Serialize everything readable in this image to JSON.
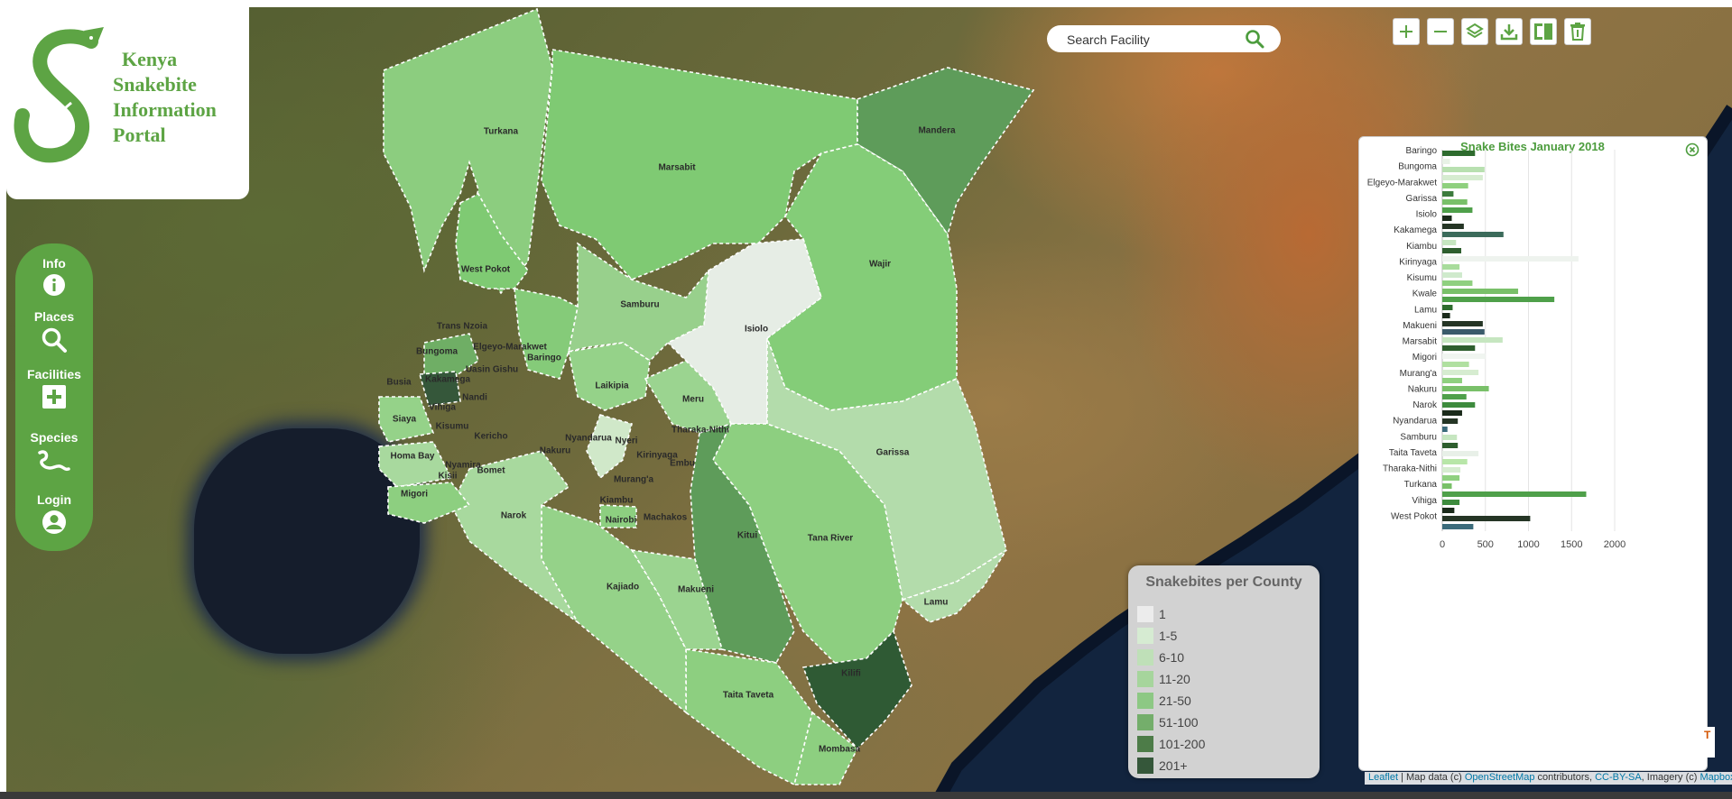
{
  "logo": {
    "line1": "Kenya",
    "line2": "Snakebite",
    "line3": "Information",
    "line4": "Portal"
  },
  "nav": {
    "info": {
      "label": "Info",
      "icon": "info-icon"
    },
    "places": {
      "label": "Places",
      "icon": "search-icon"
    },
    "facilities": {
      "label": "Facilities",
      "icon": "plus-box-icon"
    },
    "species": {
      "label": "Species",
      "icon": "snake-icon"
    },
    "login": {
      "label": "Login",
      "icon": "user-icon"
    }
  },
  "search": {
    "placeholder": "Search Facility",
    "value": ""
  },
  "toolbar": [
    "zoom-in-icon",
    "zoom-out-icon",
    "layers-icon",
    "download-icon",
    "compare-icon",
    "delete-icon"
  ],
  "counties": [
    "Turkana",
    "Marsabit",
    "Mandera",
    "Wajir",
    "West Pokot",
    "Samburu",
    "Isiolo",
    "Trans Nzoia",
    "Elgeyo-Marakwet",
    "Baringo",
    "Bungoma",
    "Uasin Gishu",
    "Busia",
    "Kakamega",
    "Nandi",
    "Vihiga",
    "Siaya",
    "Kisumu",
    "Kericho",
    "Laikipia",
    "Meru",
    "Tharaka-Nithi",
    "Nyandarua",
    "Nyeri",
    "Homa Bay",
    "Nyamira",
    "Kisii",
    "Bomet",
    "Nakuru",
    "Kirinyaga",
    "Embu",
    "Migori",
    "Murang'a",
    "Garissa",
    "Kiambu",
    "Narok",
    "Nairobi",
    "Machakos",
    "Kitui",
    "Tana River",
    "Lamu",
    "Kajiado",
    "Makueni",
    "Taita Taveta",
    "Kilifi",
    "Mombasa"
  ],
  "legend": {
    "title": "Snakebites per County",
    "items": [
      {
        "label": "1",
        "color": "#ececec"
      },
      {
        "label": "1-5",
        "color": "#d6ebd2"
      },
      {
        "label": "6-10",
        "color": "#bfe0b8"
      },
      {
        "label": "11-20",
        "color": "#a6d59c"
      },
      {
        "label": "21-50",
        "color": "#8dc884"
      },
      {
        "label": "51-100",
        "color": "#74ae6b"
      },
      {
        "label": "101-200",
        "color": "#4d7c48"
      },
      {
        "label": "201+",
        "color": "#35573a"
      }
    ]
  },
  "chart_data": {
    "type": "bar",
    "title": "Snake Bites January 2018",
    "orientation": "horizontal",
    "xlim": [
      0,
      2000
    ],
    "xticks": [
      0,
      500,
      1000,
      1500,
      2000
    ],
    "grid": true,
    "categories": [
      "Baringo",
      "Bungoma",
      "Elgeyo-Marakwet",
      "Garissa",
      "Isiolo",
      "Kakamega",
      "Kiambu",
      "Kirinyaga",
      "Kisumu",
      "Kwale",
      "Lamu",
      "Makueni",
      "Marsabit",
      "Migori",
      "Murang'a",
      "Nakuru",
      "Narok",
      "Nyandarua",
      "Samburu",
      "Taita Taveta",
      "Tharaka-Nithi",
      "Turkana",
      "Vihiga",
      "West Pokot"
    ],
    "bars": [
      {
        "name": "Baringo",
        "value": 380,
        "color": "#2e6b2e"
      },
      {
        "name": "Baringo",
        "value": 90,
        "color": "#e8f2e6"
      },
      {
        "name": "Bungoma",
        "value": 490,
        "color": "#b8e0b0"
      },
      {
        "name": "Bungoma",
        "value": 470,
        "color": "#d6ecd0"
      },
      {
        "name": "Elgeyo-Marakwet",
        "value": 300,
        "color": "#8fd07f"
      },
      {
        "name": "Elgeyo-Marakwet",
        "value": 130,
        "color": "#3d7b3d"
      },
      {
        "name": "Garissa",
        "value": 290,
        "color": "#79c069"
      },
      {
        "name": "Garissa",
        "value": 350,
        "color": "#4fa04a"
      },
      {
        "name": "Isiolo",
        "value": 110,
        "color": "#1a2a1a"
      },
      {
        "name": "Isiolo",
        "value": 250,
        "color": "#253525"
      },
      {
        "name": "Kakamega",
        "value": 710,
        "color": "#3b6b5b"
      },
      {
        "name": "Kakamega",
        "value": 160,
        "color": "#c6e6c0"
      },
      {
        "name": "Kiambu",
        "value": 220,
        "color": "#2e5e2e"
      },
      {
        "name": "Kiambu",
        "value": 1580,
        "color": "#eef3ee"
      },
      {
        "name": "Kirinyaga",
        "value": 200,
        "color": "#a8dc9c"
      },
      {
        "name": "Kirinyaga",
        "value": 230,
        "color": "#cfeacc"
      },
      {
        "name": "Kisumu",
        "value": 350,
        "color": "#8fd07f"
      },
      {
        "name": "Kisumu",
        "value": 880,
        "color": "#79c069"
      },
      {
        "name": "Kwale",
        "value": 1300,
        "color": "#4fa04a"
      },
      {
        "name": "Kwale",
        "value": 120,
        "color": "#2e6b2e"
      },
      {
        "name": "Lamu",
        "value": 90,
        "color": "#1a2a1a"
      },
      {
        "name": "Lamu",
        "value": 470,
        "color": "#253525"
      },
      {
        "name": "Makueni",
        "value": 490,
        "color": "#3b5b6b"
      },
      {
        "name": "Makueni",
        "value": 700,
        "color": "#c6e6c0"
      },
      {
        "name": "Marsabit",
        "value": 380,
        "color": "#2e5e2e"
      },
      {
        "name": "Marsabit",
        "value": 500,
        "color": "#f0f5f0"
      },
      {
        "name": "Migori",
        "value": 310,
        "color": "#b0e0a0"
      },
      {
        "name": "Migori",
        "value": 420,
        "color": "#d6ecd0"
      },
      {
        "name": "Murang'a",
        "value": 230,
        "color": "#8fd07f"
      },
      {
        "name": "Murang'a",
        "value": 540,
        "color": "#79c069"
      },
      {
        "name": "Nakuru",
        "value": 280,
        "color": "#4fa04a"
      },
      {
        "name": "Nakuru",
        "value": 380,
        "color": "#3d8b3d"
      },
      {
        "name": "Narok",
        "value": 230,
        "color": "#1a2a1a"
      },
      {
        "name": "Narok",
        "value": 180,
        "color": "#253525"
      },
      {
        "name": "Nyandarua",
        "value": 60,
        "color": "#3b6b7b"
      },
      {
        "name": "Nyandarua",
        "value": 170,
        "color": "#c6e6c0"
      },
      {
        "name": "Samburu",
        "value": 180,
        "color": "#2e5e2e"
      },
      {
        "name": "Samburu",
        "value": 420,
        "color": "#e8f0e8"
      },
      {
        "name": "Taita Taveta",
        "value": 290,
        "color": "#b8e6a8"
      },
      {
        "name": "Taita Taveta",
        "value": 210,
        "color": "#d6ecd0"
      },
      {
        "name": "Tharaka-Nithi",
        "value": 200,
        "color": "#8fd07f"
      },
      {
        "name": "Tharaka-Nithi",
        "value": 110,
        "color": "#79c069"
      },
      {
        "name": "Turkana",
        "value": 1670,
        "color": "#4fa04a"
      },
      {
        "name": "Turkana",
        "value": 200,
        "color": "#3d8b3d"
      },
      {
        "name": "Vihiga",
        "value": 140,
        "color": "#1a2a1a"
      },
      {
        "name": "Vihiga",
        "value": 1020,
        "color": "#253525"
      },
      {
        "name": "West Pokot",
        "value": 360,
        "color": "#3b6b7b"
      }
    ]
  },
  "attribution": {
    "leaflet": "Leaflet",
    "text1": " | Map data (c) ",
    "osm": "OpenStreetMap",
    "text2": " contributors, ",
    "ccbysa": "CC-BY-SA",
    "text3": ", Imagery (c) ",
    "mapbox": "Mapbox"
  },
  "badge": "T"
}
